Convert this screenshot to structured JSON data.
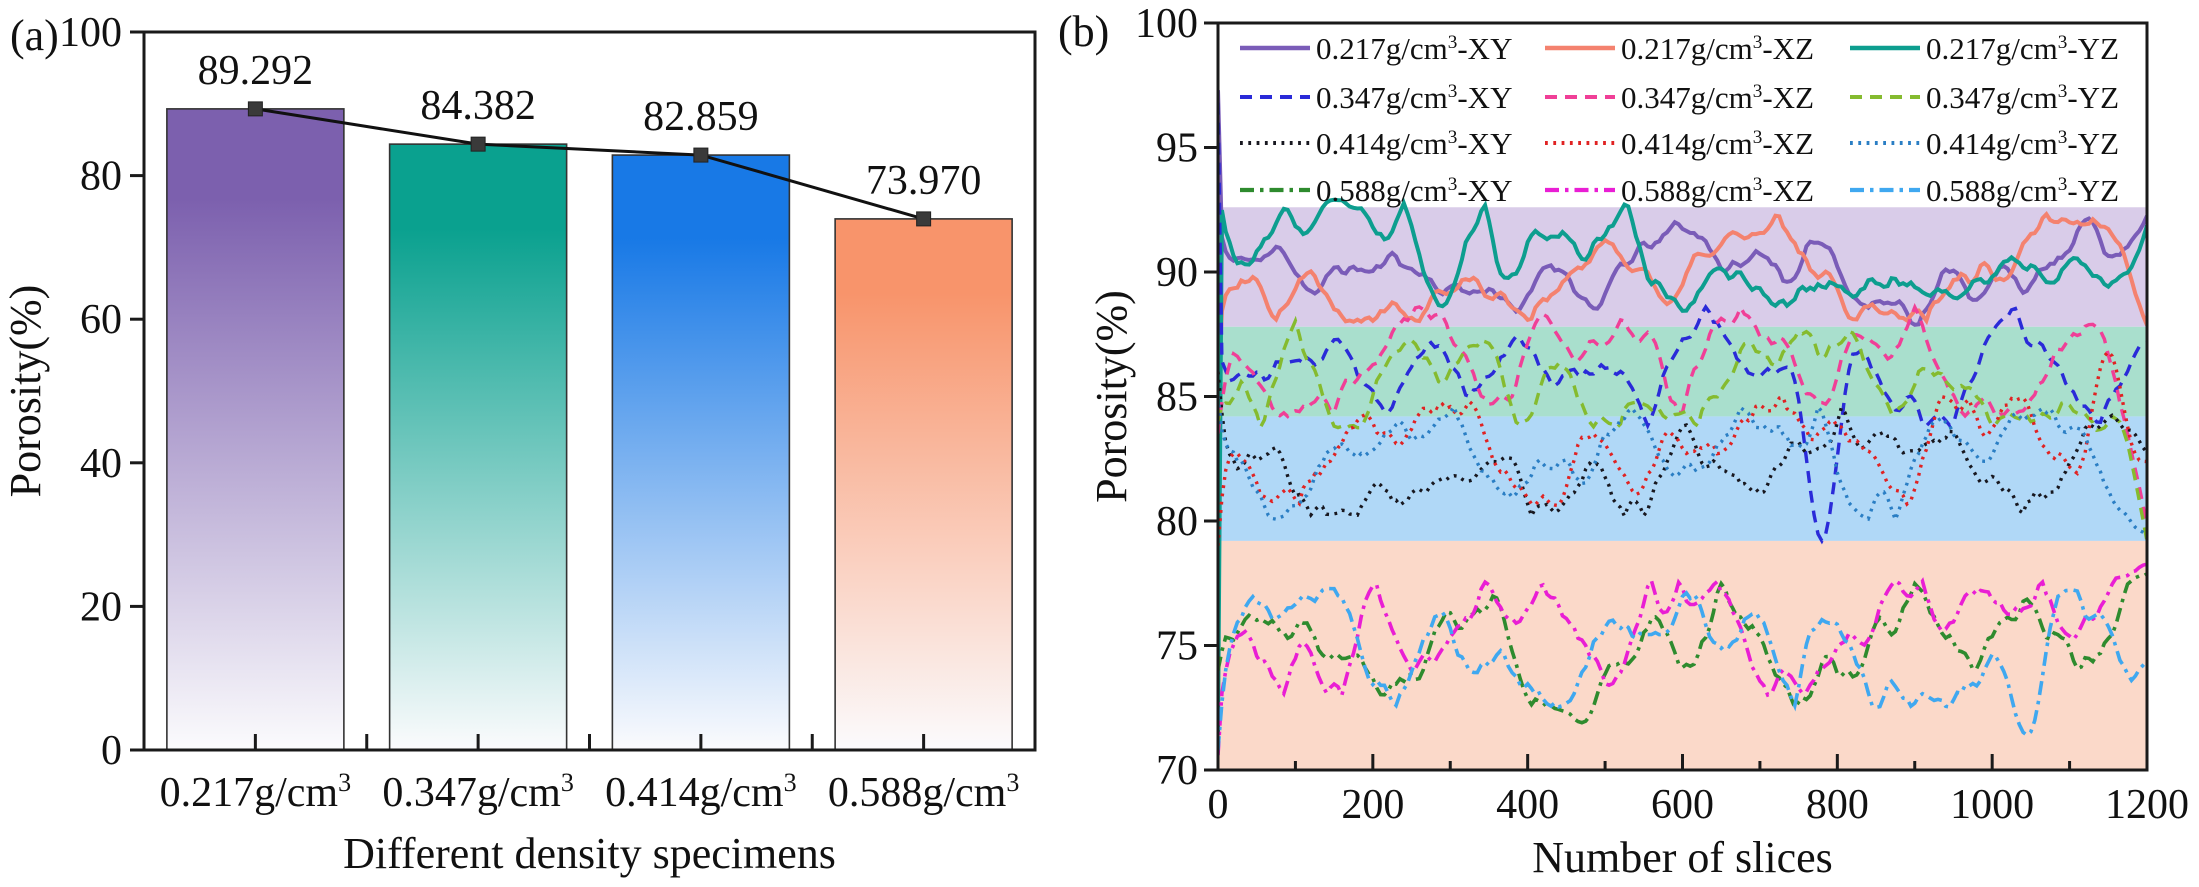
{
  "chart_data": [
    {
      "type": "bar",
      "panel_label": "(a)",
      "title": "",
      "xlabel": "Different density specimens",
      "ylabel": "Porosity(%)",
      "ylim": [
        0,
        100
      ],
      "yticks": [
        0,
        20,
        40,
        60,
        80,
        100
      ],
      "categories": [
        "0.217",
        "0.347",
        "0.414",
        "0.588"
      ],
      "category_unit": "g/cm",
      "category_sup": "3",
      "values": [
        89.292,
        84.382,
        82.859,
        73.97
      ],
      "value_labels": [
        "89.292",
        "84.382",
        "82.859",
        "73.970"
      ],
      "bar_colors": [
        "#7c60ae",
        "#0aa18f",
        "#1879e6",
        "#f8946b"
      ],
      "bar_fade_to": "#fbfbfd",
      "bar_border_color": "#333333",
      "trend_line_color": "#111111",
      "marker_color": "#3a3a3a",
      "legend_position": "none",
      "grid": false
    },
    {
      "type": "line",
      "panel_label": "(b)",
      "title": "",
      "xlabel": "Number of slices",
      "ylabel": "Porosity(%)",
      "xlim": [
        0,
        1200
      ],
      "ylim": [
        70,
        100
      ],
      "xticks": [
        0,
        200,
        400,
        600,
        800,
        1000,
        1200
      ],
      "yticks": [
        70,
        75,
        80,
        85,
        90,
        95,
        100
      ],
      "x_minor_step": 100,
      "grid": false,
      "legend_position": "top-inside",
      "legend_unit": "g/cm",
      "legend_sup": "3",
      "bands": [
        {
          "from": 87.8,
          "to": 92.6,
          "color": "#d9cce9"
        },
        {
          "from": 84.2,
          "to": 87.8,
          "color": "#a9dfcd"
        },
        {
          "from": 79.2,
          "to": 84.2,
          "color": "#b0d8f7"
        },
        {
          "from": 70.0,
          "to": 79.2,
          "color": "#fbd9c9"
        }
      ],
      "series": [
        {
          "density": "0.217",
          "plane": "XY",
          "label": "0.217g/cm3-XY",
          "color": "#7a5cb8",
          "dash": "solid",
          "mean": 90.1,
          "amp": 0.85,
          "range": 2.3,
          "start": 97.3,
          "end": 92.6,
          "seed": 11,
          "spikes": []
        },
        {
          "density": "0.217",
          "plane": "XZ",
          "label": "0.217g/cm3-XZ",
          "color": "#f4826f",
          "dash": "solid",
          "mean": 90.2,
          "amp": 0.85,
          "range": 2.2,
          "start": 84.8,
          "end": 87.6,
          "seed": 22,
          "spikes": []
        },
        {
          "density": "0.217",
          "plane": "YZ",
          "label": "0.217g/cm3-YZ",
          "color": "#0d9e8f",
          "dash": "solid",
          "mean": 90.3,
          "amp": 0.95,
          "range": 2.5,
          "start": 71.5,
          "end": 92.3,
          "seed": 33,
          "spikes": [
            [
              150,
              92.9
            ]
          ]
        },
        {
          "density": "0.347",
          "plane": "XY",
          "label": "0.347g/cm3-XY",
          "color": "#2a2ad8",
          "dash": "dashed",
          "mean": 86.2,
          "amp": 1.0,
          "range": 2.4,
          "start": 96.8,
          "end": 87.2,
          "seed": 44,
          "spikes": [
            [
              780,
              79.2
            ]
          ]
        },
        {
          "density": "0.347",
          "plane": "XZ",
          "label": "0.347g/cm3-XZ",
          "color": "#f03f97",
          "dash": "dashed",
          "mean": 86.4,
          "amp": 1.0,
          "range": 2.2,
          "start": 83.5,
          "end": 79.0,
          "seed": 55,
          "spikes": [
            [
              420,
              88.3
            ]
          ]
        },
        {
          "density": "0.347",
          "plane": "YZ",
          "label": "0.347g/cm3-YZ",
          "color": "#85bb2f",
          "dash": "dashed",
          "mean": 85.9,
          "amp": 1.0,
          "range": 2.2,
          "start": 84.0,
          "end": 78.4,
          "seed": 66,
          "spikes": []
        },
        {
          "density": "0.414",
          "plane": "XY",
          "label": "0.414g/cm3-XY",
          "color": "#17171f",
          "dash": "dotted",
          "mean": 82.4,
          "amp": 1.0,
          "range": 2.2,
          "start": 86.0,
          "end": 82.7,
          "seed": 77,
          "spikes": []
        },
        {
          "density": "0.414",
          "plane": "XZ",
          "label": "0.414g/cm3-XZ",
          "color": "#e02222",
          "dash": "dotted",
          "mean": 82.8,
          "amp": 1.0,
          "range": 2.2,
          "start": 79.0,
          "end": 82.3,
          "seed": 88,
          "spikes": [
            [
              1150,
              86.8
            ]
          ]
        },
        {
          "density": "0.414",
          "plane": "YZ",
          "label": "0.414g/cm3-YZ",
          "color": "#2a7ec4",
          "dash": "dotted",
          "mean": 82.3,
          "amp": 1.0,
          "range": 2.3,
          "start": 85.0,
          "end": 79.3,
          "seed": 99,
          "spikes": []
        },
        {
          "density": "0.588",
          "plane": "XY",
          "label": "0.588g/cm3-XY",
          "color": "#2e8b2e",
          "dash": "dashdot",
          "mean": 75.0,
          "amp": 1.1,
          "range": 2.5,
          "start": 74.0,
          "end": 78.0,
          "seed": 111,
          "spikes": [
            [
              470,
              71.9
            ]
          ]
        },
        {
          "density": "0.588",
          "plane": "XZ",
          "label": "0.588g/cm3-XZ",
          "color": "#e91ed4",
          "dash": "dashdot",
          "mean": 75.3,
          "amp": 1.1,
          "range": 2.3,
          "start": 70.6,
          "end": 78.4,
          "seed": 122,
          "spikes": []
        },
        {
          "density": "0.588",
          "plane": "YZ",
          "label": "0.588g/cm3-YZ",
          "color": "#3fa8f0",
          "dash": "dashdot",
          "mean": 74.9,
          "amp": 1.15,
          "range": 2.4,
          "start": 70.8,
          "end": 74.5,
          "seed": 133,
          "spikes": [
            [
              1045,
              71.4
            ]
          ]
        }
      ]
    }
  ]
}
